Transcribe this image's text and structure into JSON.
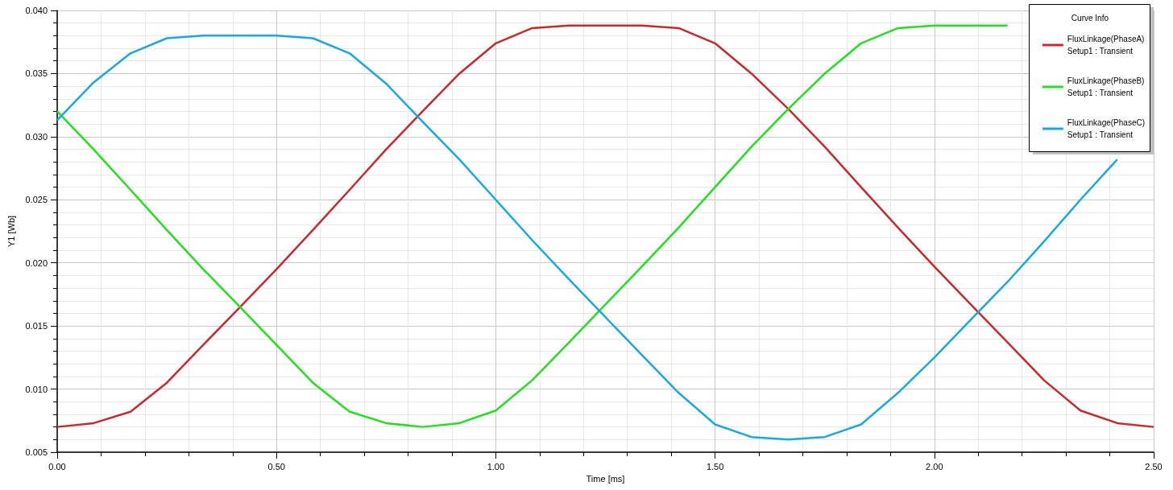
{
  "chart_data": {
    "type": "line",
    "xlabel": "Time [ms]",
    "ylabel": "Y1 [Wb]",
    "legend_title": "Curve Info",
    "x": [
      0,
      0.083,
      0.167,
      0.25,
      0.333,
      0.417,
      0.5,
      0.583,
      0.667,
      0.75,
      0.833,
      0.917,
      1.0,
      1.083,
      1.167,
      1.25,
      1.333,
      1.417,
      1.5,
      1.583,
      1.667,
      1.75,
      1.833,
      1.917,
      2.0,
      2.083,
      2.167,
      2.25,
      2.333,
      2.417,
      2.5
    ],
    "series": [
      {
        "name": "FluxLinkage(PhaseA)\nSetup1 : Transient",
        "color": "#c8282e",
        "values": [
          0.007,
          0.0073,
          0.0082,
          0.0105,
          0.0135,
          0.0165,
          0.0195,
          0.0226,
          0.0258,
          0.029,
          0.032,
          0.035,
          0.0374,
          0.0386,
          0.0388,
          0.0388,
          0.0388,
          0.0386,
          0.0374,
          0.035,
          0.0322,
          0.0292,
          0.026,
          0.0228,
          0.0197,
          0.0167,
          0.0137,
          0.0107,
          0.0083,
          0.0073,
          0.007
        ]
      },
      {
        "name": "FluxLinkage(PhaseB)\nSetup1 : Transient",
        "color": "#22e01e",
        "values": [
          0.032,
          0.029,
          0.0258,
          0.0226,
          0.0195,
          0.0165,
          0.0135,
          0.0105,
          0.0082,
          0.0073,
          0.007,
          0.0073,
          0.0083,
          0.0107,
          0.0137,
          0.0167,
          0.0197,
          0.0228,
          0.026,
          0.0292,
          0.0322,
          0.035,
          0.0374,
          0.0386,
          0.0388,
          0.0388,
          0.0388,
          null,
          null,
          null,
          null
        ]
      },
      {
        "name": "FluxLinkage(PhaseC)\nSetup1 : Transient",
        "color": "#1aa8e0",
        "values": [
          0.0313,
          0.0343,
          0.0366,
          0.0378,
          0.038,
          0.038,
          0.038,
          0.0378,
          0.0366,
          0.0342,
          0.0312,
          0.0282,
          0.025,
          0.0218,
          0.0187,
          0.0157,
          0.0127,
          0.0097,
          0.0072,
          0.0062,
          0.006,
          0.0062,
          0.0072,
          0.0097,
          0.0125,
          0.0155,
          0.0185,
          0.0217,
          0.025,
          0.0282,
          null
        ]
      }
    ],
    "xlim": [
      0,
      2.5
    ],
    "xticks": [
      {
        "value": 0,
        "label": "0.00"
      },
      {
        "value": 0.5,
        "label": "0.50"
      },
      {
        "value": 1.0,
        "label": "1.00"
      },
      {
        "value": 1.5,
        "label": "1.50"
      },
      {
        "value": 2.0,
        "label": "2.00"
      },
      {
        "value": 2.5,
        "label": "2.50"
      }
    ],
    "ylim": [
      0.005,
      0.04
    ],
    "yticks": [
      {
        "value": 0.005,
        "label": "0.005"
      },
      {
        "value": 0.01,
        "label": "0.010"
      },
      {
        "value": 0.015,
        "label": "0.015"
      },
      {
        "value": 0.02,
        "label": "0.020"
      },
      {
        "value": 0.025,
        "label": "0.025"
      },
      {
        "value": 0.03,
        "label": "0.030"
      },
      {
        "value": 0.035,
        "label": "0.035"
      },
      {
        "value": 0.04,
        "label": "0.040"
      }
    ],
    "grid": true,
    "legend": "top right",
    "marker": "none",
    "line_style": "solid"
  }
}
